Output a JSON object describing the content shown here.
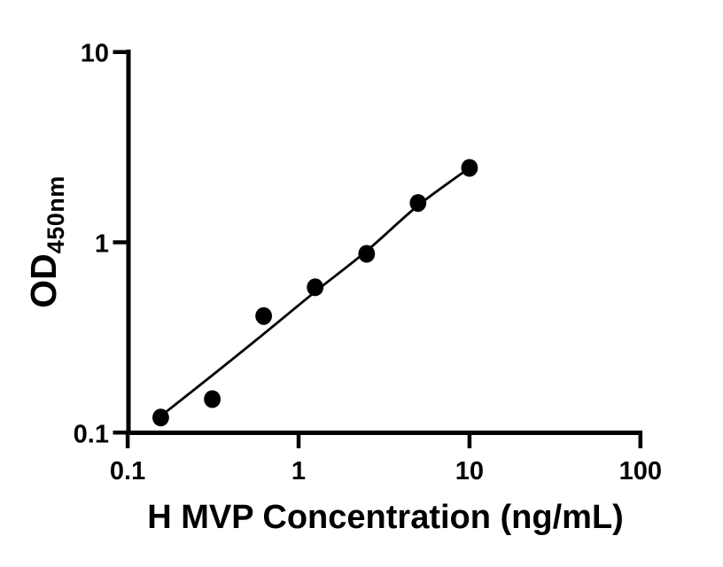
{
  "figure": {
    "background_color": "#ffffff",
    "ink_color": "#000000"
  },
  "chart_data": {
    "type": "scatter",
    "subtype": "line-and-markers-standard-curve",
    "title": "",
    "xlabel": "H MVP Concentration (ng/mL)",
    "ylabel_main": "OD",
    "ylabel_sub": "450nm",
    "x_scale": "log10",
    "y_scale": "log10",
    "xlim": [
      0.1,
      100
    ],
    "ylim": [
      0.1,
      10
    ],
    "grid": false,
    "legend": "none",
    "x_ticks": [
      {
        "value": 0.1,
        "label": "0.1"
      },
      {
        "value": 1,
        "label": "1"
      },
      {
        "value": 10,
        "label": "10"
      },
      {
        "value": 100,
        "label": "100"
      }
    ],
    "y_ticks": [
      {
        "value": 0.1,
        "label": "0.1"
      },
      {
        "value": 1,
        "label": "1"
      },
      {
        "value": 10,
        "label": "10"
      }
    ],
    "series": [
      {
        "name": "H MVP standard curve",
        "marker": "filled-circle",
        "marker_color": "#000000",
        "line_color": "#000000",
        "points": [
          {
            "x": 0.156,
            "y": 0.12
          },
          {
            "x": 0.3125,
            "y": 0.15
          },
          {
            "x": 0.625,
            "y": 0.41
          },
          {
            "x": 1.25,
            "y": 0.58
          },
          {
            "x": 2.5,
            "y": 0.87
          },
          {
            "x": 5,
            "y": 1.61
          },
          {
            "x": 10,
            "y": 2.46
          }
        ],
        "fit_line": {
          "x": [
            0.156,
            0.3125,
            0.625,
            1.25,
            2.5,
            5,
            10
          ],
          "y": [
            0.122,
            0.2,
            0.33,
            0.55,
            0.9,
            1.56,
            2.46
          ]
        }
      }
    ]
  }
}
